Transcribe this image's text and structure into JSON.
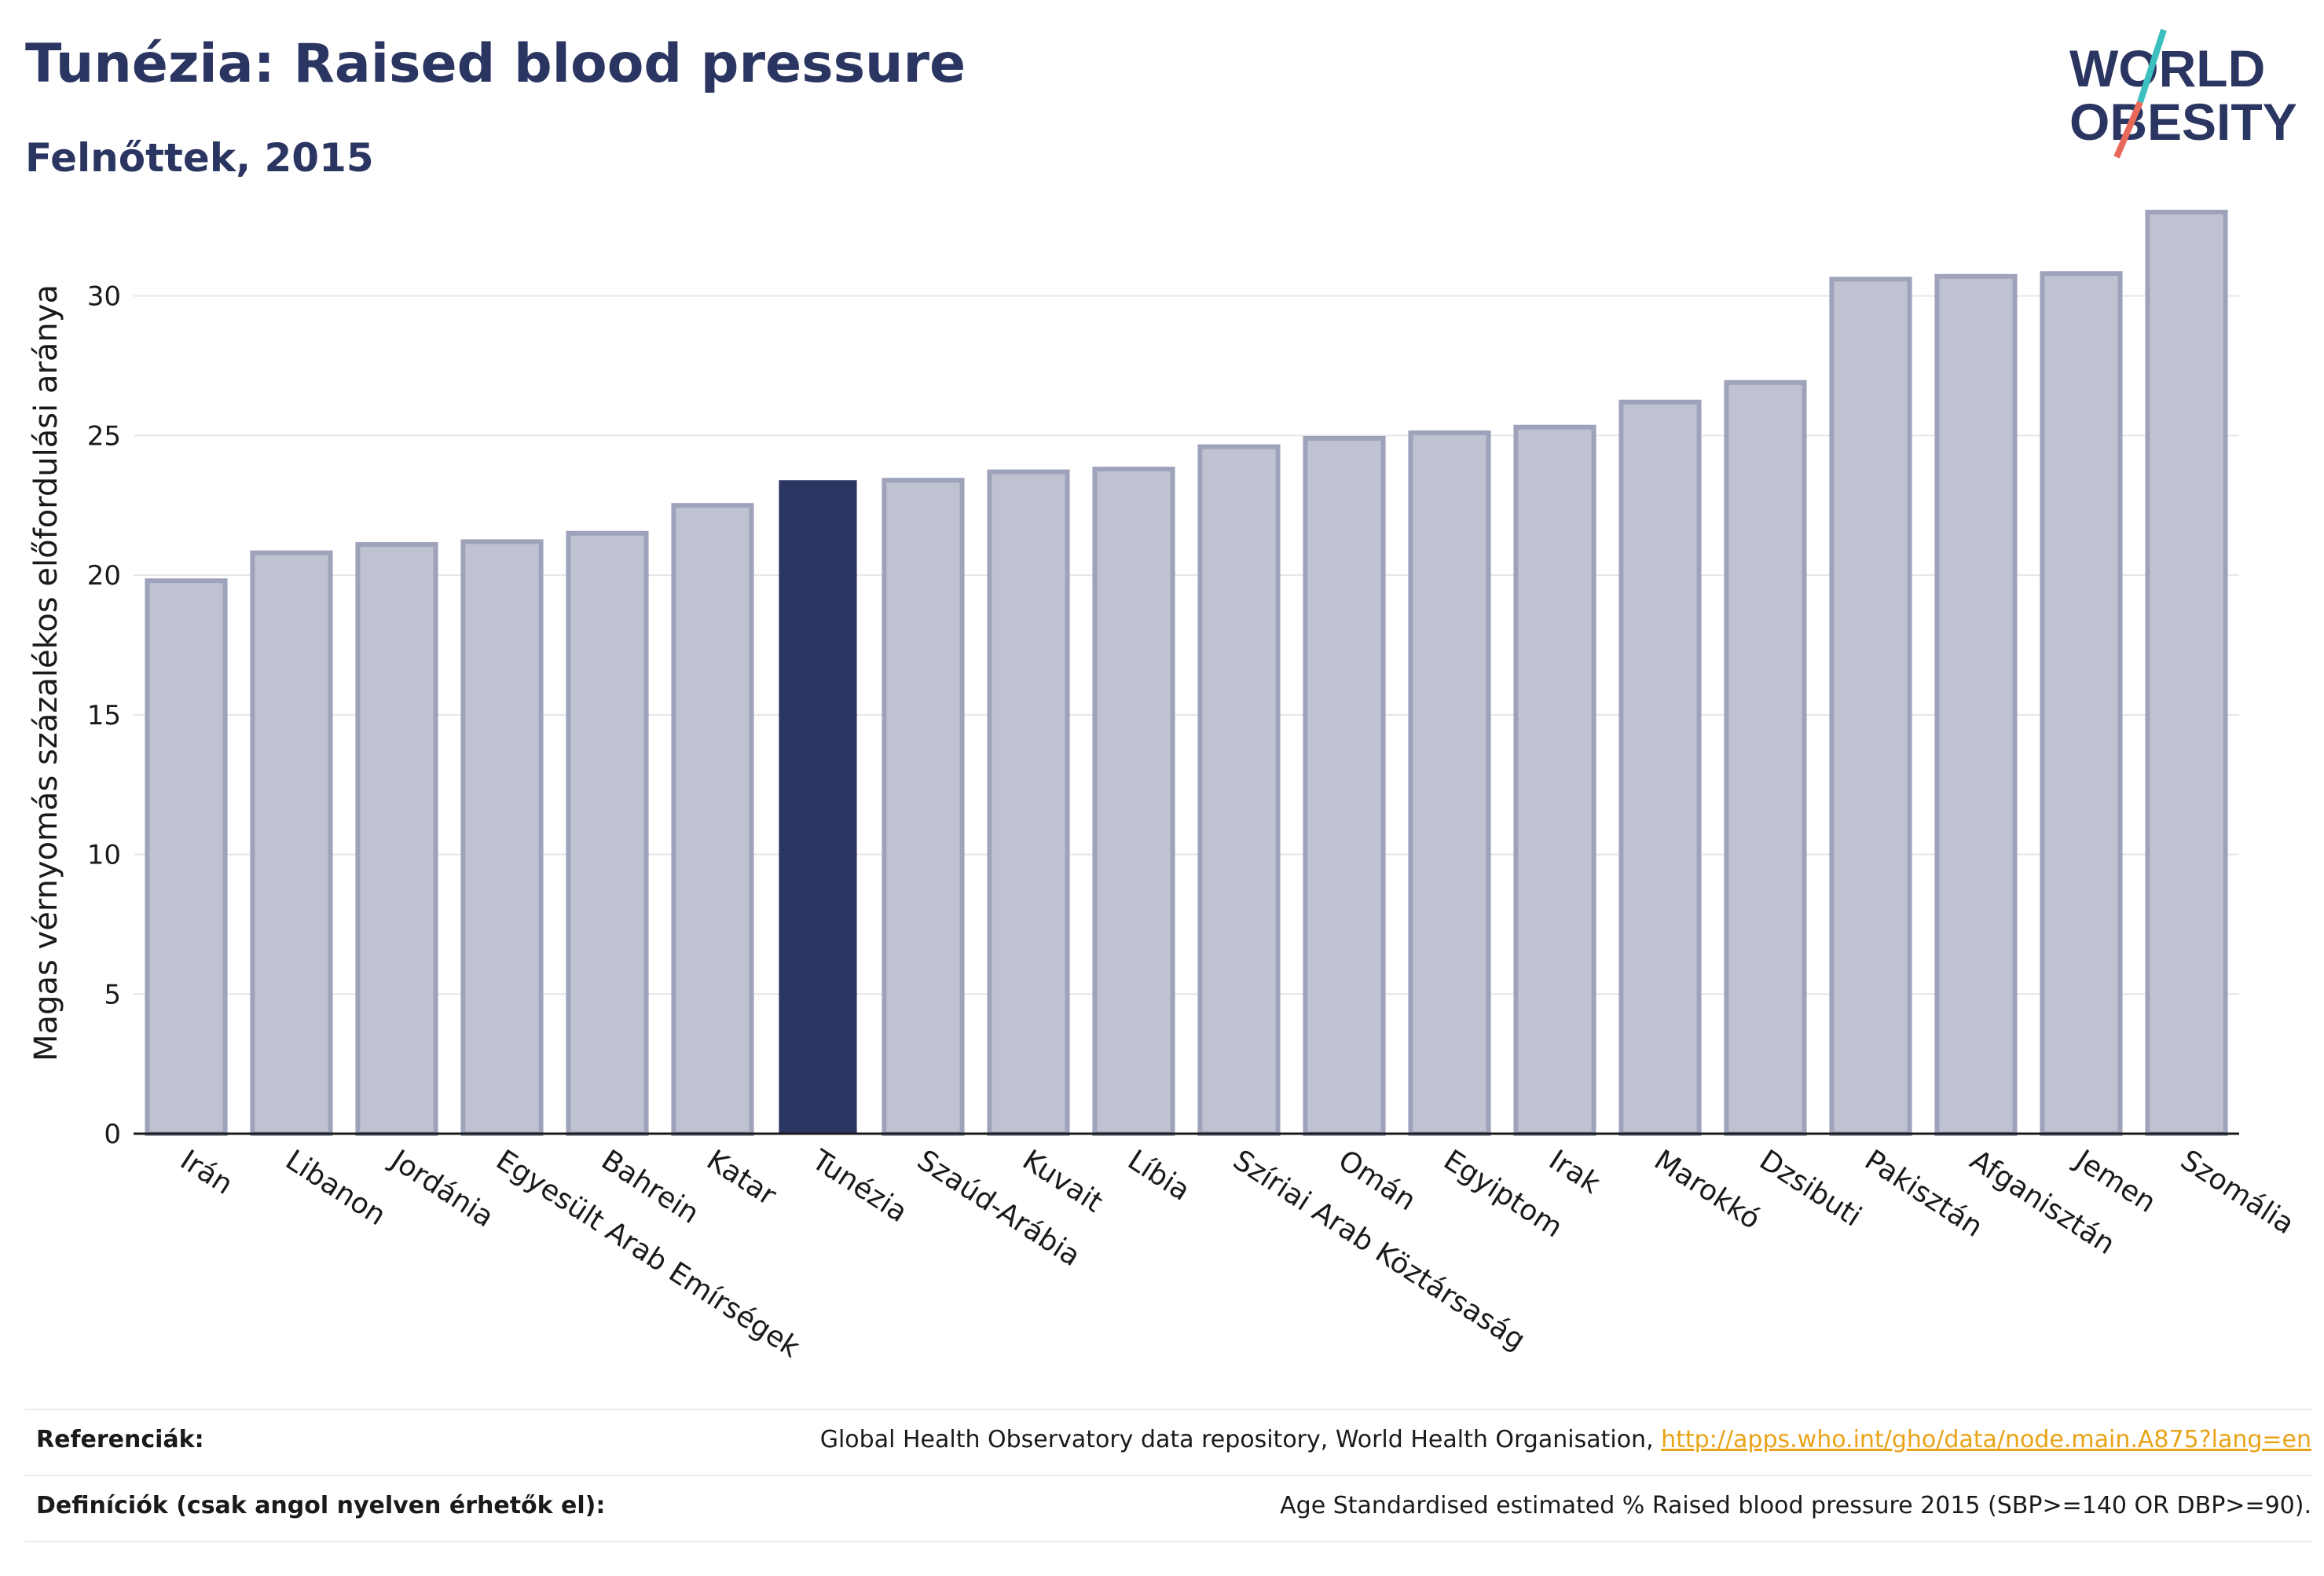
{
  "header": {
    "title": "Tunézia: Raised blood pressure",
    "subtitle": "Felnőttek, 2015"
  },
  "logo": {
    "line1": "WORLD",
    "line2": "OBESITY",
    "accent_teal": "#3bbfbf",
    "accent_coral": "#e8685a"
  },
  "colors": {
    "highlight_bar": "#2b3561",
    "other_bar_fill": "#bfc2d0",
    "other_bar_stroke": "#9ea3bb",
    "grid": "#e6e6ea",
    "text": "#1a1a1a"
  },
  "chart_data": {
    "type": "bar",
    "ylabel": "Magas vérnyomás százalékos előfordulási aránya",
    "ylim": [
      0,
      33
    ],
    "yticks": [
      0,
      5,
      10,
      15,
      20,
      25,
      30
    ],
    "grid": true,
    "highlight": "Tunézia",
    "categories": [
      "Irán",
      "Libanon",
      "Jordánia",
      "Egyesült Arab Emírségek",
      "Bahrein",
      "Katar",
      "Tunézia",
      "Szaúd-Arábia",
      "Kuvait",
      "Líbia",
      "Szíriai Arab Köztársaság",
      "Omán",
      "Egyiptom",
      "Irak",
      "Marokkó",
      "Dzsibuti",
      "Pakisztán",
      "Afganisztán",
      "Jemen",
      "Szomália"
    ],
    "values": [
      19.8,
      20.8,
      21.1,
      21.2,
      21.5,
      22.5,
      23.4,
      23.4,
      23.7,
      23.8,
      24.6,
      24.9,
      25.1,
      25.3,
      26.2,
      26.9,
      30.6,
      30.7,
      30.8,
      33.0
    ]
  },
  "references": {
    "ref_label": "Referenciák:",
    "ref_text": "Global Health Observatory data repository, World Health Organisation, ",
    "ref_link": "http://apps.who.int/gho/data/node.main.A875?lang=en",
    "def_label": "Definíciók (csak angol nyelven érhetők el):",
    "def_text": "Age Standardised estimated % Raised blood pressure 2015 (SBP>=140 OR DBP>=90)."
  }
}
